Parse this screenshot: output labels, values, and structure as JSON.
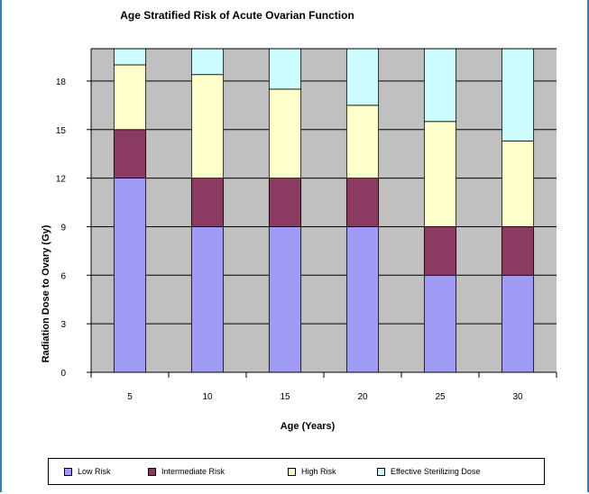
{
  "chart_data": {
    "type": "bar",
    "stacked": true,
    "title": "Age Stratified Risk of Acute Ovarian Function",
    "xlabel": "Age (Years)",
    "ylabel": "Radiation Dose to Ovary (Gy)",
    "categories": [
      "5",
      "10",
      "15",
      "20",
      "25",
      "30"
    ],
    "y_ticks": [
      "0",
      "3",
      "6",
      "9",
      "12",
      "15",
      "18"
    ],
    "ylim": [
      0,
      20
    ],
    "grid": true,
    "legend_position": "bottom",
    "series": [
      {
        "name": "Low Risk",
        "color": "#a09cf6",
        "values": [
          12,
          9,
          9,
          9,
          6,
          6
        ]
      },
      {
        "name": "Intermediate Risk",
        "color": "#8b3a62",
        "values": [
          3,
          3,
          3,
          3,
          3,
          3
        ]
      },
      {
        "name": "High Risk",
        "color": "#ffffcc",
        "values": [
          4,
          6.4,
          5.5,
          4.5,
          6.5,
          5.3
        ]
      },
      {
        "name": "Effective Sterilizing Dose",
        "color": "#ccfcfd",
        "values": [
          1,
          1.6,
          2.5,
          3.5,
          4.5,
          5.7
        ]
      }
    ],
    "plot_background": "#c0c0c0"
  }
}
